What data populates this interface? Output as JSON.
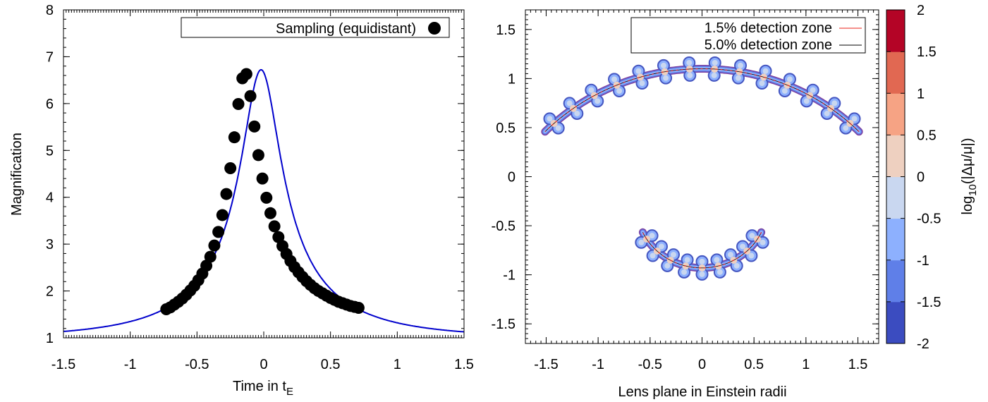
{
  "chart_data": [
    {
      "type": "scatter",
      "xlabel": "Time in t",
      "xlabel_sub": "E",
      "ylabel": "Magnification",
      "xlim": [
        -1.5,
        1.5
      ],
      "ylim": [
        1,
        8
      ],
      "x_ticks": [
        "-1.5",
        "-1",
        "-0.5",
        "0",
        "0.5",
        "1",
        "1.5"
      ],
      "y_ticks": [
        "1",
        "2",
        "3",
        "4",
        "5",
        "6",
        "7",
        "8"
      ],
      "legend_position": "top-right",
      "model_curve": {
        "color": "#0000cc",
        "u0": 0.15,
        "t0": -0.02,
        "x_range": [
          -1.5,
          1.5
        ]
      },
      "series": [
        {
          "name": "Sampling (equidistant)",
          "color": "#000000",
          "marker": "filled-circle",
          "x": [
            -0.73,
            -0.7,
            -0.67,
            -0.64,
            -0.61,
            -0.58,
            -0.55,
            -0.52,
            -0.49,
            -0.46,
            -0.43,
            -0.4,
            -0.37,
            -0.34,
            -0.31,
            -0.28,
            -0.25,
            -0.22,
            -0.19,
            -0.16,
            -0.13,
            -0.1,
            -0.07,
            -0.04,
            -0.01,
            0.02,
            0.05,
            0.08,
            0.11,
            0.14,
            0.17,
            0.2,
            0.23,
            0.26,
            0.29,
            0.32,
            0.35,
            0.38,
            0.41,
            0.44,
            0.47,
            0.5,
            0.53,
            0.56,
            0.59,
            0.62,
            0.65,
            0.68,
            0.71
          ],
          "y": [
            1.61,
            1.65,
            1.71,
            1.77,
            1.84,
            1.92,
            2.01,
            2.11,
            2.23,
            2.37,
            2.54,
            2.73,
            2.97,
            3.26,
            3.62,
            4.07,
            4.62,
            5.28,
            5.99,
            6.54,
            6.63,
            6.16,
            5.51,
            4.9,
            4.4,
            3.99,
            3.66,
            3.38,
            3.15,
            2.96,
            2.79,
            2.64,
            2.51,
            2.4,
            2.3,
            2.21,
            2.13,
            2.06,
            2.0,
            1.95,
            1.9,
            1.85,
            1.81,
            1.77,
            1.74,
            1.71,
            1.68,
            1.66,
            1.64
          ]
        }
      ]
    },
    {
      "type": "heatmap",
      "xlabel": "Lens plane in Einstein radii",
      "ylabel": "",
      "xlim": [
        -1.7,
        1.7
      ],
      "ylim": [
        -1.7,
        1.7
      ],
      "x_ticks": [
        "-1.5",
        "-1",
        "-0.5",
        "0",
        "0.5",
        "1",
        "1.5"
      ],
      "y_ticks": [
        "-1.5",
        "-1",
        "-0.5",
        "0",
        "0.5",
        "1",
        "1.5"
      ],
      "legend_position": "top-right",
      "series": [
        {
          "name": "1.5% detection zone",
          "color": "#e8221a"
        },
        {
          "name": "5.0% detection zone",
          "color": "#000000"
        }
      ],
      "colorbar": {
        "label": "log10(|Δμ/μ|)",
        "label_prefix": "log",
        "label_sub": "10",
        "label_rest": "(|Δμ/μ|)",
        "range": [
          -2,
          2
        ],
        "ticks": [
          "-2",
          "-1.5",
          "-1",
          "-0.5",
          "0",
          "0.5",
          "1",
          "1.5",
          "2"
        ],
        "colors": [
          "#3b4cc0",
          "#5f7fe8",
          "#8db0fe",
          "#c9d7f0",
          "#eed0c0",
          "#f6a384",
          "#e16852",
          "#b40426"
        ]
      },
      "upper_arc": {
        "center": [
          0,
          -1.0
        ],
        "radius": 2.1,
        "angle_range_deg": [
          44,
          136
        ],
        "blob_count": 14
      },
      "lower_arc": {
        "center": [
          0,
          -0.3
        ],
        "radius": 0.63,
        "angle_range_deg": [
          -25,
          -155
        ],
        "blob_count": 9
      }
    }
  ]
}
